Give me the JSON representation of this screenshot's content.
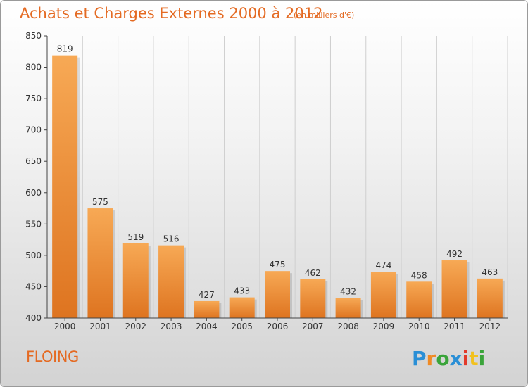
{
  "chart_data": {
    "type": "bar",
    "title": "Achats et Charges Externes 2000 à 2012",
    "subtitle": "(en milliers d'€)",
    "categories": [
      "2000",
      "2001",
      "2002",
      "2003",
      "2004",
      "2005",
      "2006",
      "2007",
      "2008",
      "2009",
      "2010",
      "2011",
      "2012"
    ],
    "values": [
      819,
      575,
      519,
      516,
      427,
      433,
      475,
      462,
      432,
      474,
      458,
      492,
      463
    ],
    "ylim": [
      400,
      850
    ],
    "yticks": [
      400,
      450,
      500,
      550,
      600,
      650,
      700,
      750,
      800,
      850
    ],
    "grid": "vertical",
    "colors": {
      "bar_top": "#f7a955",
      "bar_bottom": "#de7420",
      "text": "#e46a22",
      "axis": "#444444"
    }
  },
  "footer": {
    "location": "FLOING",
    "brand": "Proxiti"
  }
}
